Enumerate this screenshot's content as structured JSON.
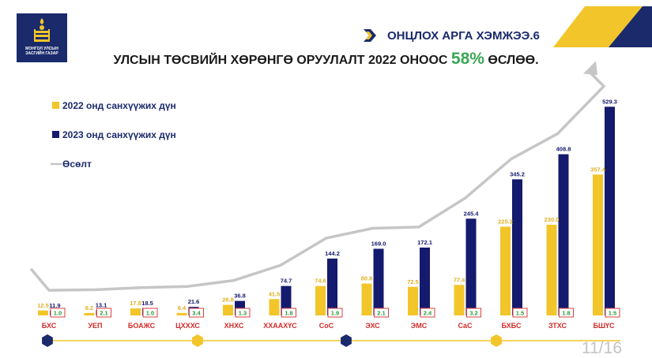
{
  "logo": {
    "text": "МОНГОЛ УЛСЫН ЗАСГИЙН ГАЗАР"
  },
  "slide_title": "ОНЦЛОХ АРГА ХЭМЖЭЭ.6",
  "headline": {
    "text": "УЛСЫН ТӨСВИЙН ХӨРӨНГӨ ОРУУЛАЛТ 2022 ОНООС ",
    "percent": "58%",
    "suffix": " ӨСЛӨӨ."
  },
  "page_number": "11/16",
  "colors": {
    "series_2022": "#f2c52a",
    "series_2023": "#141a6e",
    "growth_line": "#c6c6c6",
    "navy": "#1b2a6b",
    "yellow": "#f2c52a",
    "growth_box_border": "#d94040",
    "growth_box_text": "#2a9a3a",
    "category_label": "#d42a2a",
    "percent_green": "#3aa655"
  },
  "chart_data": {
    "type": "bar",
    "categories": [
      "БХС",
      "УЕП",
      "БОАЖС",
      "ЦХХХС",
      "ХНХС",
      "ХХААХҮС",
      "СоС",
      "ЭХС",
      "ЭМС",
      "СаС",
      "БХБС",
      "ЗТХС",
      "БШҮС"
    ],
    "series": [
      {
        "name": "2022 онд санхүүжих дүн",
        "values": [
          12.5,
          6.2,
          17.8,
          6.4,
          26.8,
          41.5,
          74.6,
          80.8,
          72.5,
          77.4,
          225.2,
          230.0,
          357.4
        ],
        "labels": [
          "12.5",
          "6.2",
          "17.8",
          "6.4",
          "26.8",
          "41.5",
          "74.6",
          "80.8",
          "72.5",
          "77.4",
          "225.2",
          "230.0",
          "357.4"
        ]
      },
      {
        "name": "2023 онд санхүүжих дүн",
        "values": [
          11.9,
          13.1,
          18.5,
          21.6,
          36.8,
          74.7,
          144.2,
          169.0,
          172.1,
          245.4,
          345.2,
          408.8,
          529.3
        ],
        "labels": [
          "11.9",
          "13.1",
          "18.5",
          "21.6",
          "36.8",
          "74.7",
          "144.2",
          "169.0",
          "172.1",
          "245.4",
          "345.2",
          "408.8",
          "529.3"
        ]
      }
    ],
    "growth": {
      "name": "Өсөлт",
      "values": [
        1.0,
        2.1,
        1.0,
        3.4,
        1.3,
        1.8,
        1.9,
        2.1,
        2.4,
        3.2,
        1.5,
        1.8,
        1.5
      ],
      "labels": [
        "1.0",
        "2.1",
        "1.0",
        "3.4",
        "1.3",
        "1.8",
        "1.9",
        "2.1",
        "2.4",
        "3.2",
        "1.5",
        "1.8",
        "1.5"
      ]
    },
    "ylim": [
      0,
      560
    ],
    "legend_position": "top-left",
    "grid": false
  }
}
